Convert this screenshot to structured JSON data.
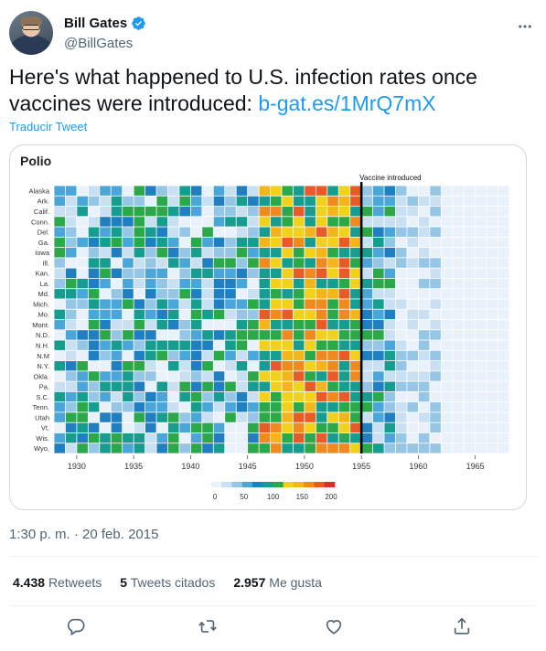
{
  "author": {
    "name": "Bill Gates",
    "handle": "@BillGates",
    "verified": true
  },
  "tweet": {
    "text": "Here's what happened to U.S. infection rates once vaccines were introduced: ",
    "link_text": "b-gat.es/1MrQ7mX",
    "translate_label": "Traducir Tweet",
    "timestamp": "1:30 p. m. · 20 feb. 2015"
  },
  "stats": {
    "retweets_count": "4.438",
    "retweets_label": "Retweets",
    "quotes_count": "5",
    "quotes_label": "Tweets citados",
    "likes_count": "2.957",
    "likes_label": "Me gusta"
  },
  "icons": {
    "more": "more-dots-icon",
    "reply": "reply-icon",
    "retweet": "retweet-icon",
    "like": "heart-icon",
    "share": "share-icon"
  },
  "colors": {
    "accent": "#1d9bf0",
    "vaccine_line": "#000000"
  },
  "chart_data": {
    "type": "heatmap",
    "title": "Polio",
    "annotation": "Vaccine introduced",
    "annotation_x": 1955,
    "x_ticks": [
      1930,
      1935,
      1940,
      1945,
      1950,
      1955,
      1960,
      1965
    ],
    "xlim": [
      1928,
      1968
    ],
    "rows": [
      "Alaska",
      "Ark.",
      "Calif.",
      "Conn.",
      "Del.",
      "Ga.",
      "Iowa",
      "Ill.",
      "Kan.",
      "La.",
      "Md.",
      "Mich.",
      "Mo.",
      "Mont.",
      "N.D.",
      "N.H.",
      "N.M",
      "N.Y.",
      "Okla.",
      "Pa.",
      "S.C.",
      "Tenn.",
      "Utah",
      "Vt.",
      "Wis.",
      "Wyo."
    ],
    "colorbar": {
      "ticks": [
        0,
        50,
        100,
        150,
        200
      ],
      "colors": [
        "#e9f2fa",
        "#c8e0f1",
        "#96c6e6",
        "#4aa6d8",
        "#1f7fc0",
        "#179d8f",
        "#2ba84a",
        "#f2d11c",
        "#f4b41a",
        "#ef8a1f",
        "#e85a26",
        "#d73027"
      ]
    }
  }
}
